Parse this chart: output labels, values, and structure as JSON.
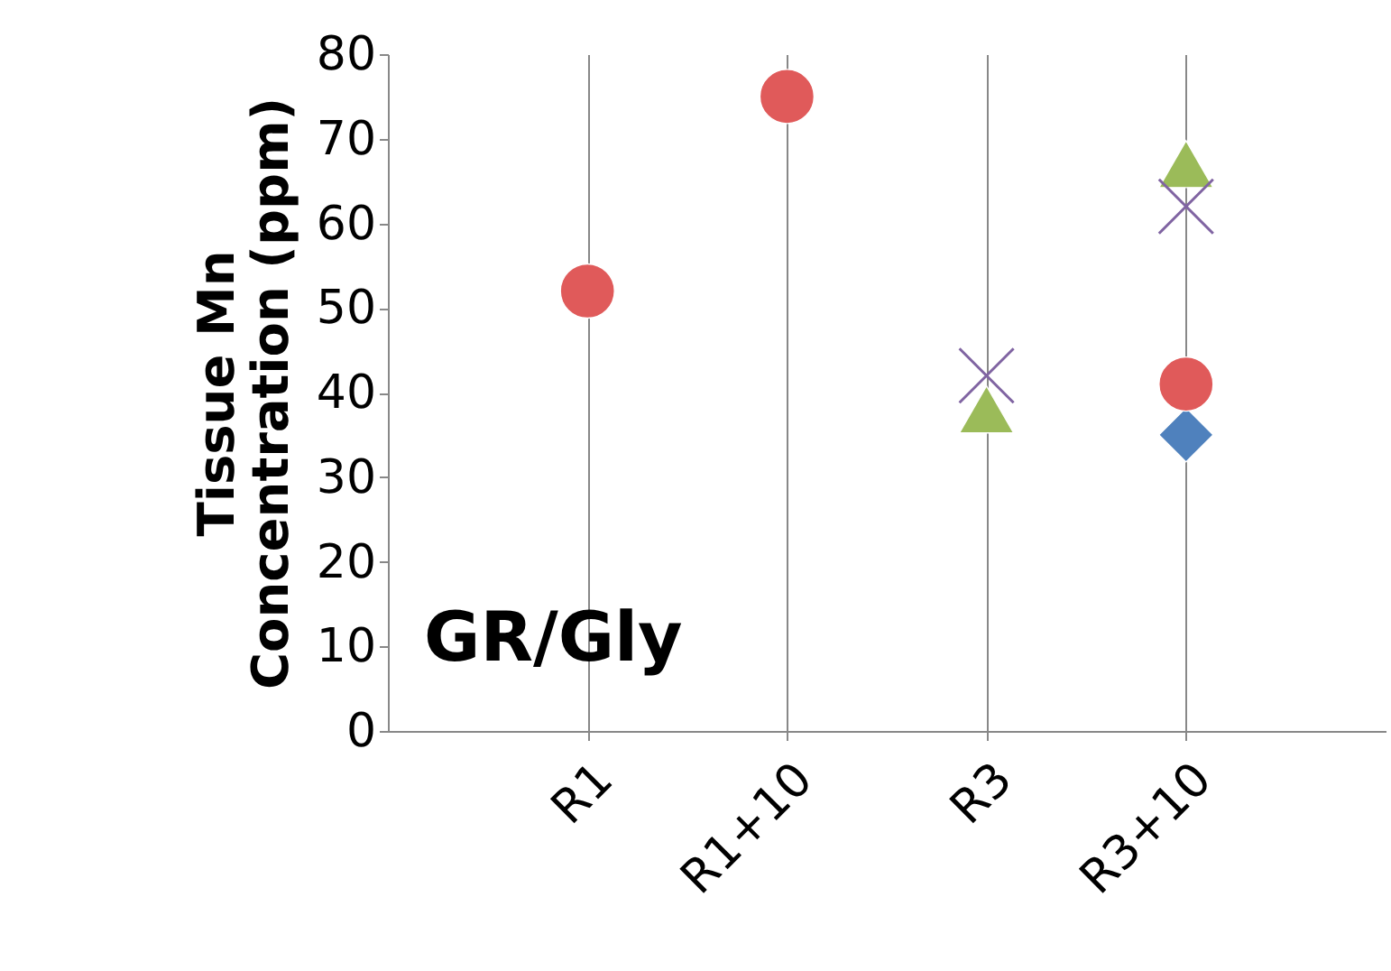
{
  "chart_data": {
    "type": "scatter",
    "ylabel": "Tissue Mn\nConcentration (ppm)",
    "categories": [
      "R1",
      "R1+10",
      "R3",
      "R3+10"
    ],
    "ylim": [
      0,
      80
    ],
    "yticks": [
      0,
      10,
      20,
      30,
      40,
      50,
      60,
      70,
      80
    ],
    "grid": "x",
    "annotations": [
      "GR/Gly"
    ],
    "series": [
      {
        "color": "#4f81bd",
        "marker": "diamond",
        "values": [
          null,
          null,
          null,
          35
        ]
      },
      {
        "color": "#e05a5a",
        "marker": "circle",
        "values": [
          52,
          75,
          null,
          41
        ]
      },
      {
        "color": "#9bbb59",
        "marker": "triangle",
        "values": [
          null,
          null,
          38,
          67
        ]
      },
      {
        "color": "#8064a2",
        "marker": "cross",
        "values": [
          null,
          null,
          42,
          62
        ]
      }
    ]
  }
}
